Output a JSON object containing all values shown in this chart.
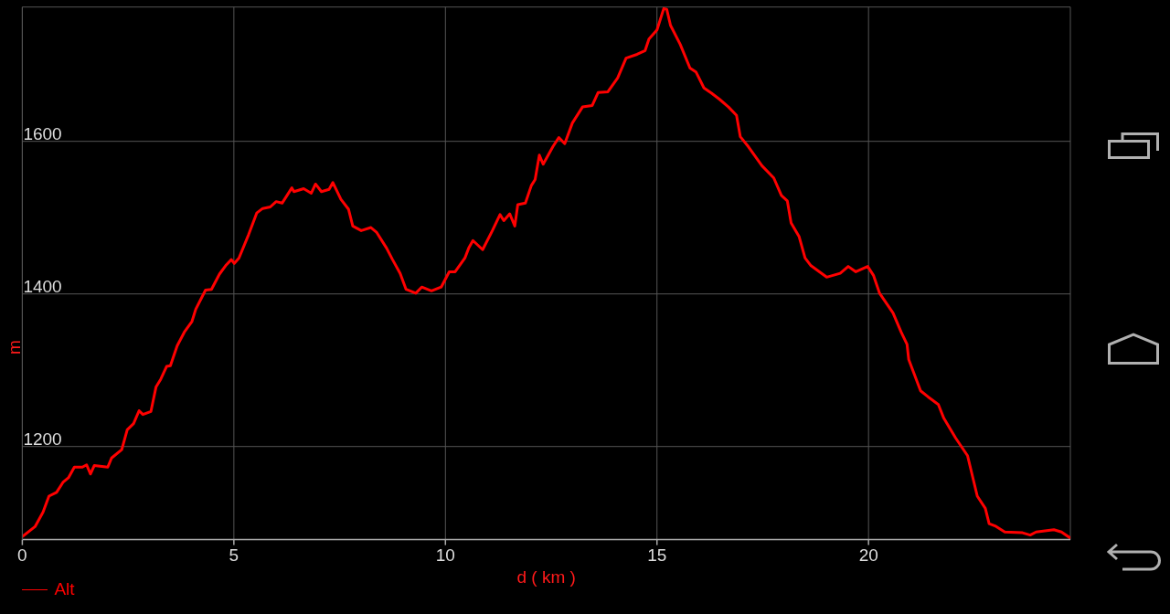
{
  "chart_data": {
    "type": "line",
    "xlabel": "d ( km )",
    "ylabel": "m",
    "xlim": [
      0,
      24.77
    ],
    "ylim": [
      1078,
      1776
    ],
    "xticks": [
      0,
      5,
      10,
      15,
      20
    ],
    "yticks": [
      1200,
      1400,
      1600
    ],
    "grid": true,
    "legend": "bottom left",
    "series": [
      {
        "name": "Alt",
        "color": "#ff0000",
        "x": [
          0,
          0.3,
          0.49,
          0.63,
          0.81,
          0.96,
          1.09,
          1.23,
          1.42,
          1.52,
          1.61,
          1.7,
          2.02,
          2.11,
          2.35,
          2.48,
          2.63,
          2.76,
          2.85,
          3.04,
          3.16,
          3.27,
          3.41,
          3.5,
          3.66,
          3.83,
          4.01,
          4.1,
          4.22,
          4.33,
          4.47,
          4.66,
          4.82,
          4.94,
          5.01,
          5.12,
          5.35,
          5.54,
          5.68,
          5.86,
          6,
          6.14,
          6.37,
          6.42,
          6.65,
          6.83,
          6.93,
          7.07,
          7.25,
          7.34,
          7.53,
          7.71,
          7.81,
          8.01,
          8.24,
          8.37,
          8.61,
          8.75,
          8.93,
          9.07,
          9.3,
          9.44,
          9.67,
          9.9,
          10.09,
          10.23,
          10.46,
          10.55,
          10.65,
          10.88,
          11.11,
          11.29,
          11.38,
          11.52,
          11.64,
          11.71,
          11.89,
          12.03,
          12.12,
          12.22,
          12.31,
          12.54,
          12.68,
          12.82,
          13,
          13.24,
          13.47,
          13.61,
          13.84,
          14.07,
          14.27,
          14.53,
          14.72,
          14.81,
          15,
          15.16,
          15.23,
          15.32,
          15.55,
          15.78,
          15.92,
          16.11,
          16.29,
          16.48,
          16.69,
          16.88,
          16.97,
          17.16,
          17.48,
          17.76,
          17.94,
          18.08,
          18.17,
          18.36,
          18.5,
          18.64,
          19.01,
          19.33,
          19.52,
          19.7,
          19.98,
          20.12,
          20.26,
          20.58,
          20.77,
          20.91,
          20.95,
          21.23,
          21.41,
          21.65,
          21.78,
          22.06,
          22.34,
          22.57,
          22.76,
          22.85,
          22.99,
          23.22,
          23.64,
          23.82,
          23.96,
          24.38,
          24.56,
          24.77
        ],
        "values": [
          1082,
          1095,
          1114,
          1135,
          1140,
          1153,
          1159,
          1173,
          1173,
          1176,
          1164,
          1175,
          1173,
          1185,
          1196,
          1222,
          1230,
          1247,
          1242,
          1246,
          1278,
          1288,
          1305,
          1306,
          1332,
          1350,
          1364,
          1380,
          1393,
          1405,
          1406,
          1426,
          1438,
          1445,
          1440,
          1447,
          1478,
          1506,
          1512,
          1514,
          1521,
          1519,
          1539,
          1534,
          1538,
          1532,
          1544,
          1534,
          1537,
          1546,
          1524,
          1511,
          1489,
          1483,
          1487,
          1481,
          1460,
          1445,
          1427,
          1406,
          1401,
          1409,
          1404,
          1409,
          1429,
          1429,
          1447,
          1460,
          1470,
          1458,
          1483,
          1504,
          1496,
          1505,
          1489,
          1517,
          1519,
          1542,
          1550,
          1582,
          1570,
          1593,
          1605,
          1597,
          1624,
          1645,
          1647,
          1664,
          1665,
          1683,
          1709,
          1714,
          1719,
          1734,
          1746,
          1774,
          1773,
          1752,
          1727,
          1696,
          1691,
          1670,
          1663,
          1655,
          1645,
          1634,
          1606,
          1593,
          1568,
          1552,
          1529,
          1522,
          1493,
          1475,
          1447,
          1437,
          1422,
          1427,
          1436,
          1429,
          1436,
          1424,
          1401,
          1375,
          1350,
          1334,
          1314,
          1273,
          1265,
          1255,
          1237,
          1211,
          1188,
          1135,
          1119,
          1099,
          1096,
          1088,
          1087,
          1084,
          1088,
          1091,
          1088,
          1080
        ]
      }
    ]
  }
}
